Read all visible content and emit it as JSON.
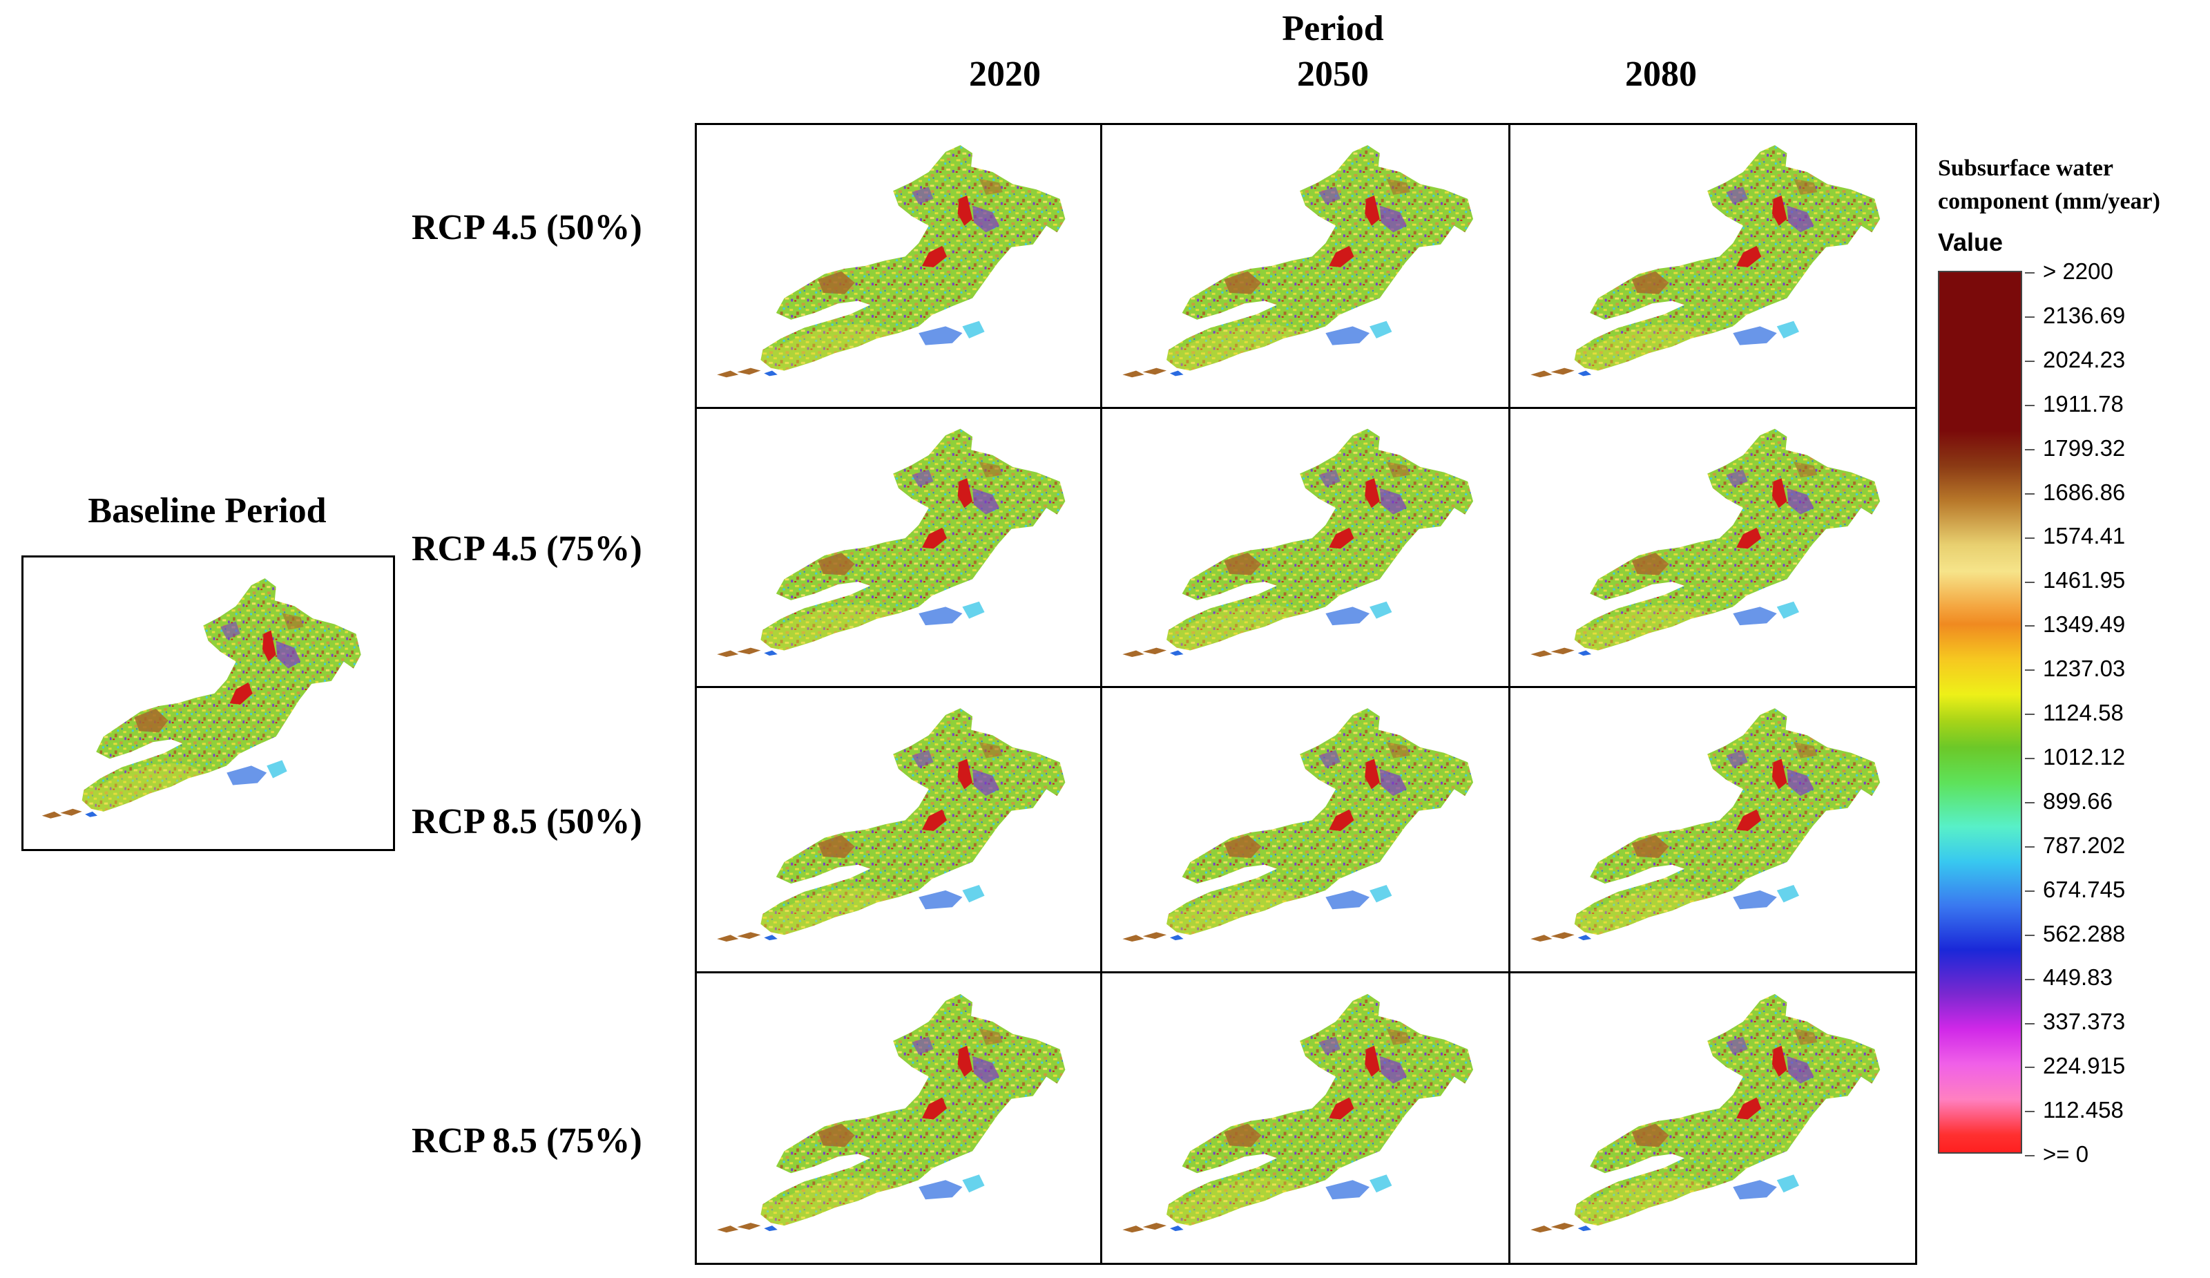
{
  "figure": {
    "period_title": "Period",
    "columns": [
      "2020",
      "2050",
      "2080"
    ],
    "rows": [
      "RCP 4.5 (50%)",
      "RCP 4.5 (75%)",
      "RCP 8.5 (50%)",
      "RCP 8.5 (75%)"
    ],
    "baseline_title": "Baseline Period"
  },
  "legend": {
    "title_line1": "Subsurface water",
    "title_line2": "component (mm/year)",
    "value_label": "Value",
    "ticks": [
      "> 2200",
      "2136.69",
      "2024.23",
      "1911.78",
      "1799.32",
      "1686.86",
      "1574.41",
      "1461.95",
      "1349.49",
      "1237.03",
      "1124.58",
      "1012.12",
      "899.66",
      "787.202",
      "674.745",
      "562.288",
      "449.83",
      "337.373",
      "224.915",
      "112.458",
      ">= 0"
    ]
  },
  "colors": {
    "basin_base": "#8fd03a",
    "basin_yellow": "#e6dc3c",
    "basin_brown": "#a86a2a",
    "basin_red": "#d01818",
    "basin_purple": "#7a3cc8",
    "basin_blue": "#2a6ae0",
    "basin_cyan": "#40c8e8"
  }
}
